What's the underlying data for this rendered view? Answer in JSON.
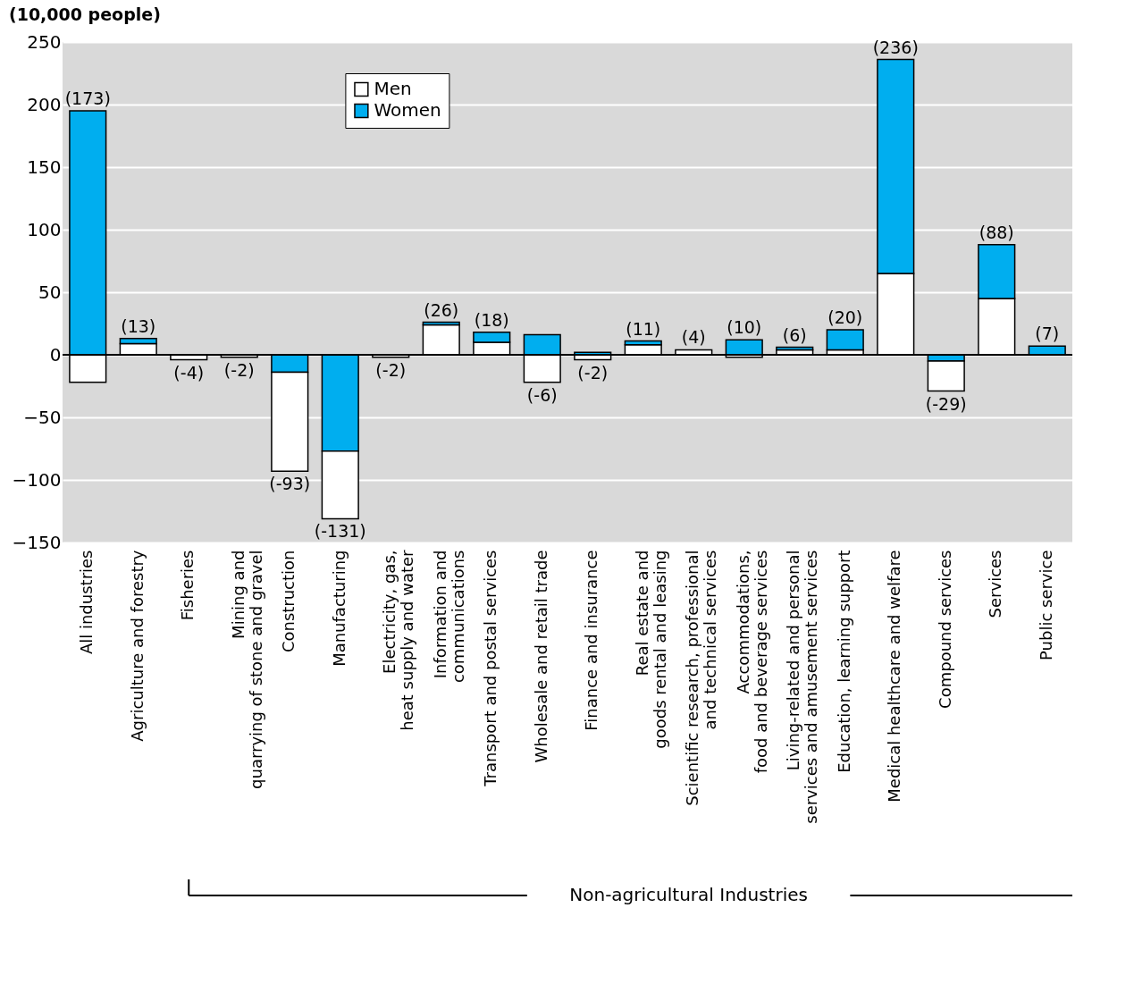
{
  "chart_data": {
    "type": "bar",
    "stacked": true,
    "ylabel": "(10,000 people)",
    "categories": [
      "All industries",
      "Agriculture and forestry",
      "Fisheries",
      "Mining and\nquarrying of stone and gravel",
      "Construction",
      "Manufacturing",
      "Electricity, gas,\nheat supply and water",
      "Information and\ncommunications",
      "Transport and postal services",
      "Wholesale and retail trade",
      "Finance and insurance",
      "Real estate and\ngoods rental and leasing",
      "Scientific research, professional\nand technical services",
      "Accommodations,\nfood and beverage services",
      "Living-related and personal\nservices and amusement services",
      "Education, learning support",
      "Medical healthcare and welfare",
      "Compound services",
      "Services",
      "Public service"
    ],
    "series": [
      {
        "name": "Men",
        "color": "#ffffff",
        "values": [
          -22,
          9,
          -4,
          -2,
          -79,
          -54,
          -2,
          24,
          10,
          -22,
          -4,
          8,
          4,
          -2,
          4,
          4,
          65,
          -24,
          45,
          0
        ]
      },
      {
        "name": "Women",
        "color": "#00aeef",
        "values": [
          195,
          4,
          0,
          0,
          -14,
          -77,
          0,
          2,
          8,
          16,
          2,
          3,
          0,
          12,
          2,
          16,
          171,
          -5,
          43,
          7
        ]
      }
    ],
    "value_labels": [
      "(173)",
      "(13)",
      "(-4)",
      "(-2)",
      "(-93)",
      "(-131)",
      "(-2)",
      "(26)",
      "(18)",
      "(-6)",
      "(-2)",
      "(11)",
      "(4)",
      "(10)",
      "(6)",
      "(20)",
      "(236)",
      "(-29)",
      "(88)",
      "(7)"
    ],
    "ylim": [
      -150,
      250
    ],
    "yticks": [
      -150,
      -100,
      -50,
      0,
      50,
      100,
      150,
      200,
      250
    ],
    "grid": "y",
    "legend": "top left",
    "annotations": [
      "Non-agricultural Industries"
    ]
  }
}
